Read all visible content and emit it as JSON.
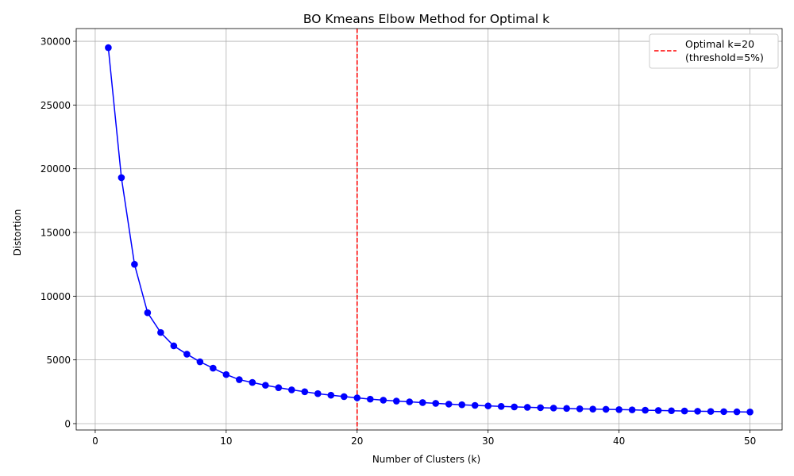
{
  "chart_data": {
    "type": "line",
    "title": "BO Kmeans Elbow Method for Optimal k",
    "xlabel": "Number of Clusters (k)",
    "ylabel": "Distortion",
    "xlim": [
      -1.45,
      52.45
    ],
    "ylim": [
      -500,
      31000
    ],
    "xticks": [
      0,
      10,
      20,
      30,
      40,
      50
    ],
    "yticks": [
      0,
      5000,
      10000,
      15000,
      20000,
      25000,
      30000
    ],
    "grid": true,
    "legend_position": "top-right",
    "series": [
      {
        "color": "#0000ff",
        "marker": "circle",
        "x": [
          1,
          2,
          3,
          4,
          5,
          6,
          7,
          8,
          9,
          10,
          11,
          12,
          13,
          14,
          15,
          16,
          17,
          18,
          19,
          20,
          21,
          22,
          23,
          24,
          25,
          26,
          27,
          28,
          29,
          30,
          31,
          32,
          33,
          34,
          35,
          36,
          37,
          38,
          39,
          40,
          41,
          42,
          43,
          44,
          45,
          46,
          47,
          48,
          49,
          50
        ],
        "y": [
          29500,
          19300,
          12500,
          8700,
          7150,
          6100,
          5450,
          4850,
          4350,
          3850,
          3450,
          3230,
          3010,
          2820,
          2650,
          2500,
          2350,
          2230,
          2120,
          2020,
          1920,
          1840,
          1770,
          1710,
          1650,
          1590,
          1530,
          1480,
          1430,
          1390,
          1350,
          1310,
          1280,
          1250,
          1220,
          1190,
          1160,
          1140,
          1120,
          1100,
          1080,
          1050,
          1030,
          1010,
          990,
          970,
          955,
          940,
          925,
          910
        ]
      }
    ],
    "reference_lines": [
      {
        "orientation": "vertical",
        "x": 20,
        "color": "#ff0000",
        "style": "dashed",
        "label_line1": "Optimal k=20",
        "label_line2": "(threshold=5%)"
      }
    ]
  }
}
